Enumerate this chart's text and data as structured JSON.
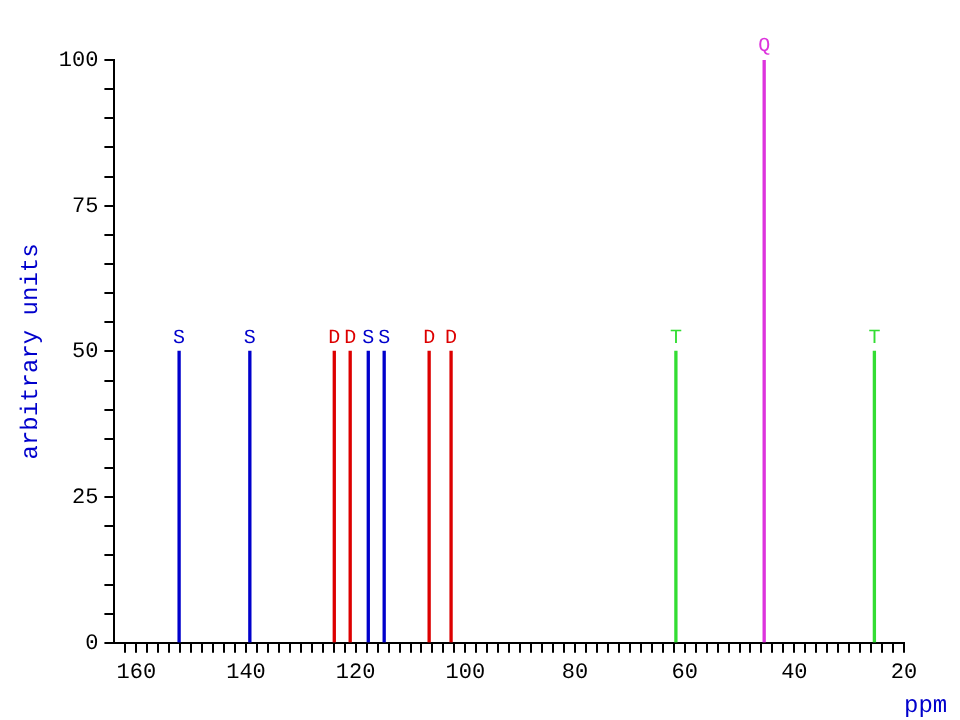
{
  "chart_data": {
    "type": "bar",
    "xlabel": "ppm",
    "ylabel": "arbitrary units",
    "xlim": [
      164,
      20
    ],
    "ylim": [
      0,
      100
    ],
    "xticks": [
      {
        "value": 162,
        "label": null
      },
      160,
      {
        "value": 158,
        "label": null
      },
      {
        "value": 156,
        "label": null
      },
      {
        "value": 154,
        "label": null
      },
      {
        "value": 152,
        "label": null
      },
      {
        "value": 150,
        "label": null
      },
      {
        "value": 148,
        "label": null
      },
      {
        "value": 146,
        "label": null
      },
      {
        "value": 144,
        "label": null
      },
      {
        "value": 142,
        "label": null
      },
      140,
      {
        "value": 138,
        "label": null
      },
      {
        "value": 136,
        "label": null
      },
      {
        "value": 134,
        "label": null
      },
      {
        "value": 132,
        "label": null
      },
      {
        "value": 130,
        "label": null
      },
      {
        "value": 128,
        "label": null
      },
      {
        "value": 126,
        "label": null
      },
      {
        "value": 124,
        "label": null
      },
      {
        "value": 122,
        "label": null
      },
      120,
      {
        "value": 118,
        "label": null
      },
      {
        "value": 116,
        "label": null
      },
      {
        "value": 114,
        "label": null
      },
      {
        "value": 112,
        "label": null
      },
      {
        "value": 110,
        "label": null
      },
      {
        "value": 108,
        "label": null
      },
      {
        "value": 106,
        "label": null
      },
      {
        "value": 104,
        "label": null
      },
      {
        "value": 102,
        "label": null
      },
      100,
      {
        "value": 98,
        "label": null
      },
      {
        "value": 96,
        "label": null
      },
      {
        "value": 94,
        "label": null
      },
      {
        "value": 92,
        "label": null
      },
      {
        "value": 90,
        "label": null
      },
      {
        "value": 88,
        "label": null
      },
      {
        "value": 86,
        "label": null
      },
      {
        "value": 84,
        "label": null
      },
      {
        "value": 82,
        "label": null
      },
      80,
      {
        "value": 78,
        "label": null
      },
      {
        "value": 76,
        "label": null
      },
      {
        "value": 74,
        "label": null
      },
      {
        "value": 72,
        "label": null
      },
      {
        "value": 70,
        "label": null
      },
      {
        "value": 68,
        "label": null
      },
      {
        "value": 66,
        "label": null
      },
      {
        "value": 64,
        "label": null
      },
      {
        "value": 62,
        "label": null
      },
      60,
      {
        "value": 58,
        "label": null
      },
      {
        "value": 56,
        "label": null
      },
      {
        "value": 54,
        "label": null
      },
      {
        "value": 52,
        "label": null
      },
      {
        "value": 50,
        "label": null
      },
      {
        "value": 48,
        "label": null
      },
      {
        "value": 46,
        "label": null
      },
      {
        "value": 44,
        "label": null
      },
      {
        "value": 42,
        "label": null
      },
      40,
      {
        "value": 38,
        "label": null
      },
      {
        "value": 36,
        "label": null
      },
      {
        "value": 34,
        "label": null
      },
      {
        "value": 32,
        "label": null
      },
      {
        "value": 30,
        "label": null
      },
      {
        "value": 28,
        "label": null
      },
      {
        "value": 26,
        "label": null
      },
      {
        "value": 24,
        "label": null
      },
      {
        "value": 22,
        "label": null
      },
      20
    ],
    "yticks": [
      0,
      {
        "value": 5,
        "label": null
      },
      {
        "value": 10,
        "label": null
      },
      {
        "value": 15,
        "label": null
      },
      {
        "value": 20,
        "label": null
      },
      25,
      {
        "value": 30,
        "label": null
      },
      {
        "value": 35,
        "label": null
      },
      {
        "value": 40,
        "label": null
      },
      {
        "value": 45,
        "label": null
      },
      50,
      {
        "value": 55,
        "label": null
      },
      {
        "value": 60,
        "label": null
      },
      {
        "value": 65,
        "label": null
      },
      {
        "value": 70,
        "label": null
      },
      75,
      {
        "value": 80,
        "label": null
      },
      {
        "value": 85,
        "label": null
      },
      {
        "value": 90,
        "label": null
      },
      {
        "value": 95,
        "label": null
      },
      100
    ],
    "grid": false,
    "legend": false,
    "series": [
      {
        "name": "S",
        "color": "#0000cc",
        "x": [
          152.2,
          139.3,
          117.7,
          114.8
        ],
        "values": [
          50,
          50,
          50,
          50
        ]
      },
      {
        "name": "D",
        "color": "#dd0000",
        "x": [
          123.9,
          121.0,
          106.6,
          102.6
        ],
        "values": [
          50,
          50,
          50,
          50
        ]
      },
      {
        "name": "T",
        "color": "#33dd33",
        "x": [
          61.6,
          25.4
        ],
        "values": [
          50,
          50
        ]
      },
      {
        "name": "Q",
        "color": "#dd33dd",
        "x": [
          45.5
        ],
        "values": [
          100
        ]
      }
    ]
  }
}
